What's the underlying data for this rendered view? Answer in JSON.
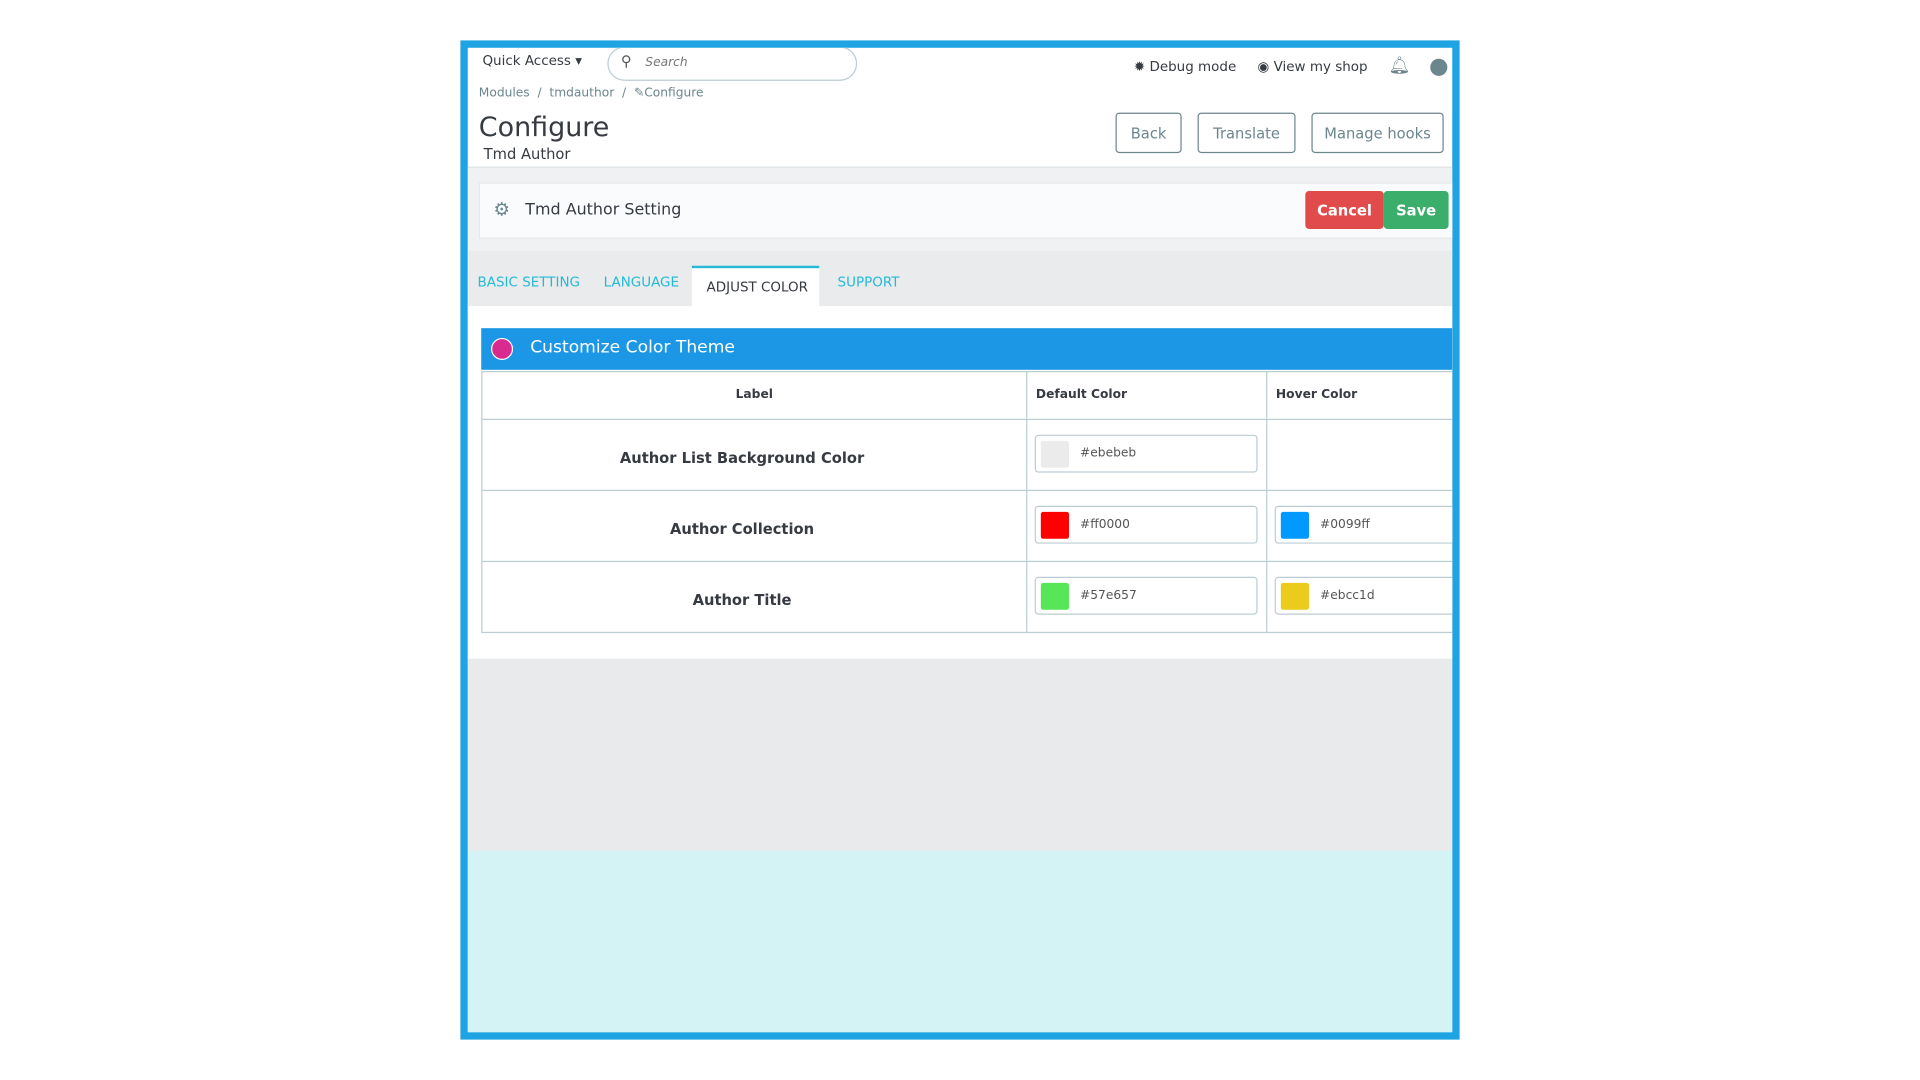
{
  "topbar": {
    "quick_access": "Quick Access",
    "search_placeholder": "Search",
    "debug_mode": "Debug mode",
    "view_shop": "View my shop"
  },
  "breadcrumb": [
    "Modules",
    "tmdauthor",
    "Configure"
  ],
  "header": {
    "title": "Configure",
    "subtitle": "Tmd Author",
    "buttons": [
      "Back",
      "Translate",
      "Manage hooks"
    ]
  },
  "panel": {
    "title": "Tmd Author Setting",
    "cancel": "Cancel",
    "save": "Save"
  },
  "tabs": [
    "BASIC SETTING",
    "LANGUAGE",
    "ADJUST COLOR",
    "SUPPORT"
  ],
  "section": {
    "title": "Customize Color Theme"
  },
  "table": {
    "headers": [
      "Label",
      "Default Color",
      "Hover Color"
    ],
    "rows": [
      [
        "Author List Background Color",
        "#ebebeb",
        null
      ],
      [
        "Author Collection",
        "#ff0000",
        "#0099ff"
      ],
      [
        "Author Title",
        "#57e657",
        "#ebcc1d"
      ]
    ]
  }
}
